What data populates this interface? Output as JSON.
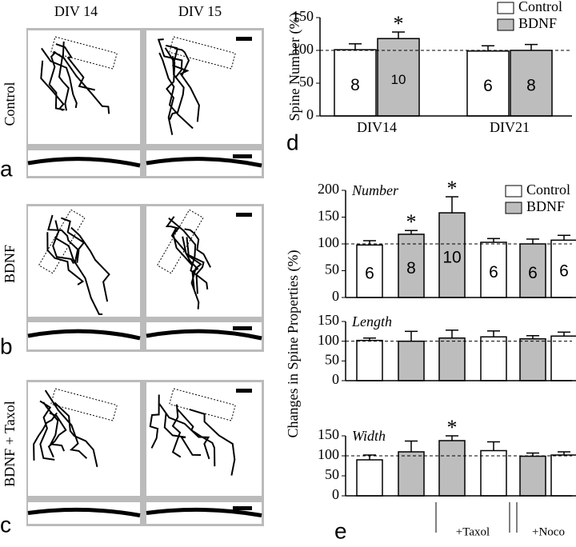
{
  "panels": {
    "column_labels": [
      "DIV 14",
      "DIV 15"
    ],
    "row_labels": [
      "Control",
      "BDNF",
      "BDNF + Taxol"
    ],
    "letters": [
      "a",
      "b",
      "c",
      "d",
      "e"
    ]
  },
  "chart_data": [
    {
      "type": "bar",
      "ylabel": "Spine Number (%)",
      "categories": [
        "DIV14",
        "DIV21"
      ],
      "series": [
        {
          "name": "Control",
          "color": "#ffffff",
          "values": [
            101,
            99
          ],
          "errors": [
            9,
            8
          ],
          "n": [
            8,
            6
          ],
          "marks": [
            null,
            null
          ]
        },
        {
          "name": "BDNF",
          "color": "#bdbdbd",
          "values": [
            118,
            100
          ],
          "errors": [
            10,
            9
          ],
          "n": [
            10,
            8
          ],
          "marks": [
            "*",
            null
          ]
        }
      ],
      "ylim": [
        0,
        150
      ],
      "yticks": [
        0,
        50,
        100,
        150
      ],
      "refline": 100
    },
    {
      "type": "bar",
      "title": "Number",
      "ylabel": "Changes in Spine Properties (%)",
      "legend": [
        {
          "name": "Control",
          "color": "#ffffff"
        },
        {
          "name": "BDNF",
          "color": "#bdbdbd"
        }
      ],
      "colors": [
        "#ffffff",
        "#bdbdbd",
        "#bdbdbd",
        "#ffffff",
        "#bdbdbd",
        "#ffffff"
      ],
      "values": [
        98,
        118,
        158,
        103,
        100,
        107
      ],
      "errors": [
        8,
        7,
        30,
        7,
        9,
        9
      ],
      "n": [
        6,
        8,
        10,
        6,
        6,
        6
      ],
      "marks": [
        null,
        "*",
        "*",
        null,
        null,
        null
      ],
      "ylim": [
        0,
        200
      ],
      "yticks": [
        0,
        50,
        100,
        150,
        200
      ],
      "refline": 100
    },
    {
      "type": "bar",
      "title": "Length",
      "colors": [
        "#ffffff",
        "#bdbdbd",
        "#bdbdbd",
        "#ffffff",
        "#bdbdbd",
        "#ffffff"
      ],
      "values": [
        102,
        100,
        108,
        111,
        106,
        113
      ],
      "errors": [
        6,
        25,
        20,
        15,
        8,
        10
      ],
      "ylim": [
        0,
        150
      ],
      "yticks": [
        0,
        50,
        100,
        150
      ],
      "refline": 100
    },
    {
      "type": "bar",
      "title": "Width",
      "colors": [
        "#ffffff",
        "#bdbdbd",
        "#bdbdbd",
        "#ffffff",
        "#bdbdbd",
        "#ffffff"
      ],
      "values": [
        90,
        110,
        138,
        113,
        99,
        102
      ],
      "errors": [
        12,
        27,
        12,
        22,
        8,
        8
      ],
      "marks": [
        null,
        null,
        "*",
        null,
        null,
        null
      ],
      "ylim": [
        0,
        150
      ],
      "yticks": [
        0,
        50,
        100,
        150
      ],
      "refline": 100,
      "groups": [
        {
          "label": "+Taxol",
          "from": 2,
          "to": 3
        },
        {
          "label": "+Noco",
          "from": 4,
          "to": 5
        }
      ]
    }
  ]
}
